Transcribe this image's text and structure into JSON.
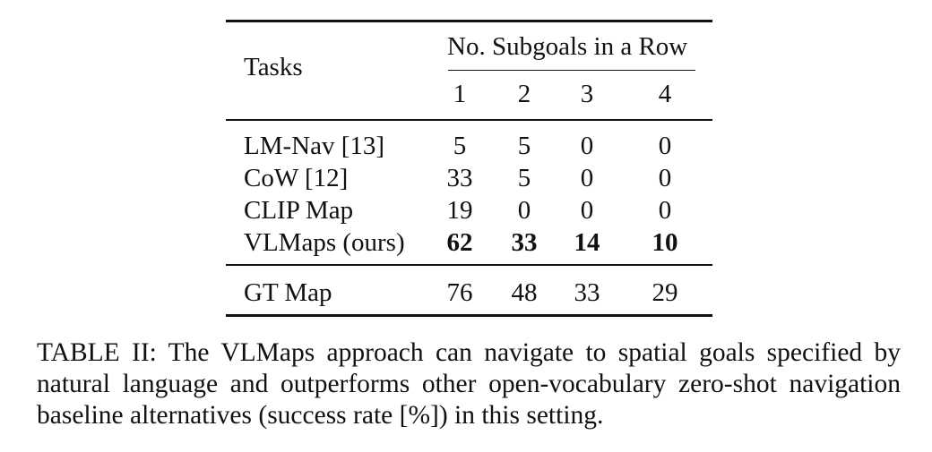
{
  "table": {
    "header": {
      "tasks_label": "Tasks",
      "group_label": "No. Subgoals in a Row",
      "columns": [
        "1",
        "2",
        "3",
        "4"
      ]
    },
    "rows": [
      {
        "task": "LM-Nav [13]",
        "values": [
          "5",
          "5",
          "0",
          "0"
        ],
        "bold": false
      },
      {
        "task": "CoW [12]",
        "values": [
          "33",
          "5",
          "0",
          "0"
        ],
        "bold": false
      },
      {
        "task": "CLIP Map",
        "values": [
          "19",
          "0",
          "0",
          "0"
        ],
        "bold": false
      },
      {
        "task": "VLMaps (ours)",
        "values": [
          "62",
          "33",
          "14",
          "10"
        ],
        "bold": true
      }
    ],
    "gt_row": {
      "task": "GT Map",
      "values": [
        "76",
        "48",
        "33",
        "29"
      ]
    }
  },
  "caption": {
    "label": "TABLE II:",
    "text": "The VLMaps approach can navigate to spatial goals specified by natural language and outperforms other open-vocabulary zero-shot navigation baseline alternatives (success rate [%]) in this setting."
  }
}
